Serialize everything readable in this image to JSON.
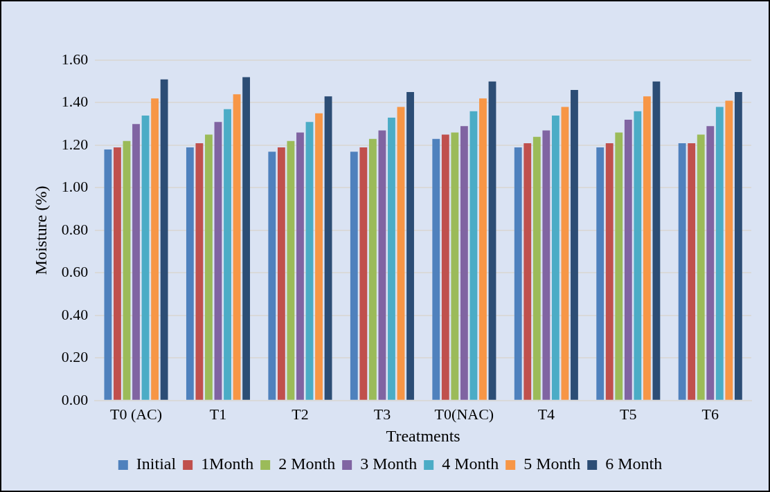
{
  "chart_data": {
    "type": "bar",
    "xlabel": "Treatments",
    "ylabel": "Moisture (%)",
    "categories": [
      "T0 (AC)",
      "T1",
      "T2",
      "T3",
      "T0(NAC)",
      "T4",
      "T5",
      "T6"
    ],
    "series": [
      {
        "name": "Initial",
        "color": "#4f81bd",
        "values": [
          1.18,
          1.19,
          1.17,
          1.17,
          1.23,
          1.19,
          1.19,
          1.21
        ]
      },
      {
        "name": "1Month",
        "color": "#c0504d",
        "values": [
          1.19,
          1.21,
          1.19,
          1.19,
          1.25,
          1.21,
          1.21,
          1.21
        ]
      },
      {
        "name": "2 Month",
        "color": "#9bbb59",
        "values": [
          1.22,
          1.25,
          1.22,
          1.23,
          1.26,
          1.24,
          1.26,
          1.25
        ]
      },
      {
        "name": "3 Month",
        "color": "#8064a2",
        "values": [
          1.3,
          1.31,
          1.26,
          1.27,
          1.29,
          1.27,
          1.32,
          1.29
        ]
      },
      {
        "name": "4 Month",
        "color": "#4bacc6",
        "values": [
          1.34,
          1.37,
          1.31,
          1.33,
          1.36,
          1.34,
          1.36,
          1.38
        ]
      },
      {
        "name": "5 Month",
        "color": "#f79646",
        "values": [
          1.42,
          1.44,
          1.35,
          1.38,
          1.42,
          1.38,
          1.43,
          1.41
        ]
      },
      {
        "name": "6 Month",
        "color": "#2c4d75",
        "values": [
          1.51,
          1.52,
          1.43,
          1.45,
          1.5,
          1.46,
          1.5,
          1.45
        ]
      }
    ],
    "ylim": [
      0,
      1.6
    ],
    "yticks": [
      {
        "value": 0,
        "label": "0.00"
      },
      {
        "value": 0.2,
        "label": "0.20"
      },
      {
        "value": 0.4,
        "label": "0.40"
      },
      {
        "value": 0.6,
        "label": "0.60"
      },
      {
        "value": 0.8,
        "label": "0.80"
      },
      {
        "value": 1,
        "label": "1.00"
      },
      {
        "value": 1.2,
        "label": "1.20"
      },
      {
        "value": 1.4,
        "label": "1.40"
      },
      {
        "value": 1.6,
        "label": "1.60"
      }
    ],
    "grid": "y",
    "legend": "bottom"
  }
}
